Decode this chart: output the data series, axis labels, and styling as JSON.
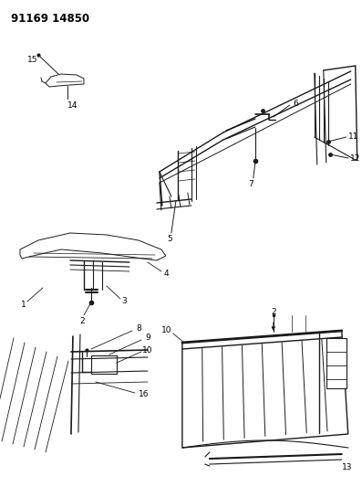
{
  "title": "91169 14850",
  "bg": "#ffffff",
  "lc": "#1a1a1a",
  "tc": "#000000",
  "fs": 6.5,
  "fs_title": 8.5
}
